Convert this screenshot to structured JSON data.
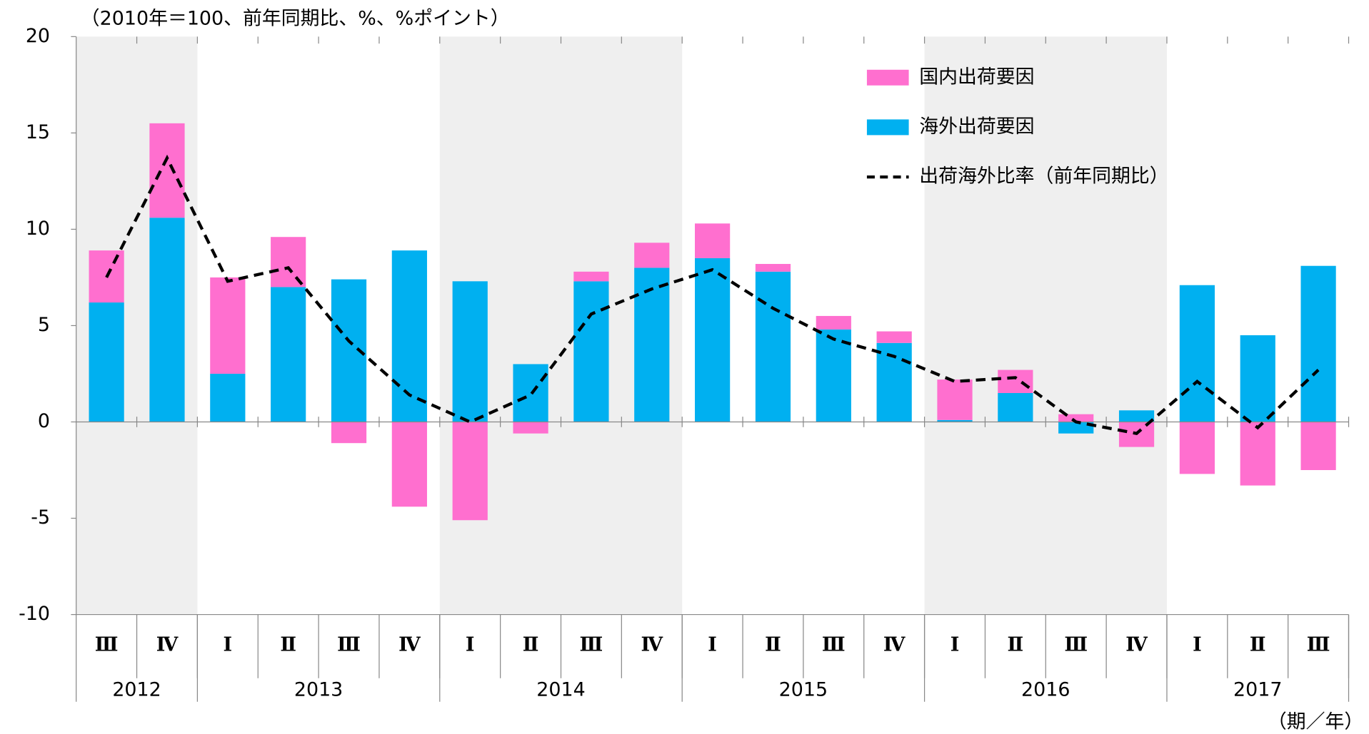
{
  "chart_data": {
    "type": "bar",
    "title": "（2010年＝100、前年同期比、%、%ポイント）",
    "x_unit": "（期／年）",
    "categories": [
      "Ⅲ",
      "Ⅳ",
      "Ⅰ",
      "Ⅱ",
      "Ⅲ",
      "Ⅳ",
      "Ⅰ",
      "Ⅱ",
      "Ⅲ",
      "Ⅳ",
      "Ⅰ",
      "Ⅱ",
      "Ⅲ",
      "Ⅳ",
      "Ⅰ",
      "Ⅱ",
      "Ⅲ",
      "Ⅳ",
      "Ⅰ",
      "Ⅱ",
      "Ⅲ"
    ],
    "years": [
      "2012",
      null,
      "2013",
      null,
      null,
      null,
      "2014",
      null,
      null,
      null,
      "2015",
      null,
      null,
      null,
      "2016",
      null,
      null,
      null,
      "2017",
      null,
      null
    ],
    "band_shading": [
      "2012",
      "2014",
      "2016"
    ],
    "series": [
      {
        "name": "国内出荷要因",
        "type": "bar",
        "color": "#ff6fcf",
        "values": [
          2.7,
          4.9,
          5.0,
          2.6,
          -1.1,
          -4.4,
          -5.1,
          -0.6,
          0.5,
          1.3,
          1.8,
          0.4,
          0.7,
          0.6,
          2.1,
          1.2,
          0.4,
          -1.3,
          -2.7,
          -3.3,
          -2.5
        ]
      },
      {
        "name": "海外出荷要因",
        "type": "bar",
        "color": "#00b0f0",
        "values": [
          6.2,
          10.6,
          2.5,
          7.0,
          7.4,
          8.9,
          7.3,
          3.0,
          7.3,
          8.0,
          8.5,
          7.8,
          4.8,
          4.1,
          0.1,
          1.5,
          -0.6,
          0.6,
          7.1,
          4.5,
          8.1
        ]
      },
      {
        "name": "出荷海外比率（前年同期比）",
        "type": "line",
        "color": "#000000",
        "dashed": true,
        "values": [
          7.5,
          13.7,
          7.3,
          8.0,
          4.2,
          1.4,
          0.0,
          1.4,
          5.6,
          6.9,
          7.9,
          5.9,
          4.3,
          3.4,
          2.1,
          2.3,
          0.0,
          -0.6,
          2.1,
          -0.3,
          2.7
        ]
      }
    ],
    "stack_order": [
      1,
      0
    ],
    "ylim": [
      -10,
      20
    ],
    "yticks": [
      -10,
      -5,
      0,
      5,
      10,
      15,
      20
    ],
    "legend": "top-right"
  }
}
